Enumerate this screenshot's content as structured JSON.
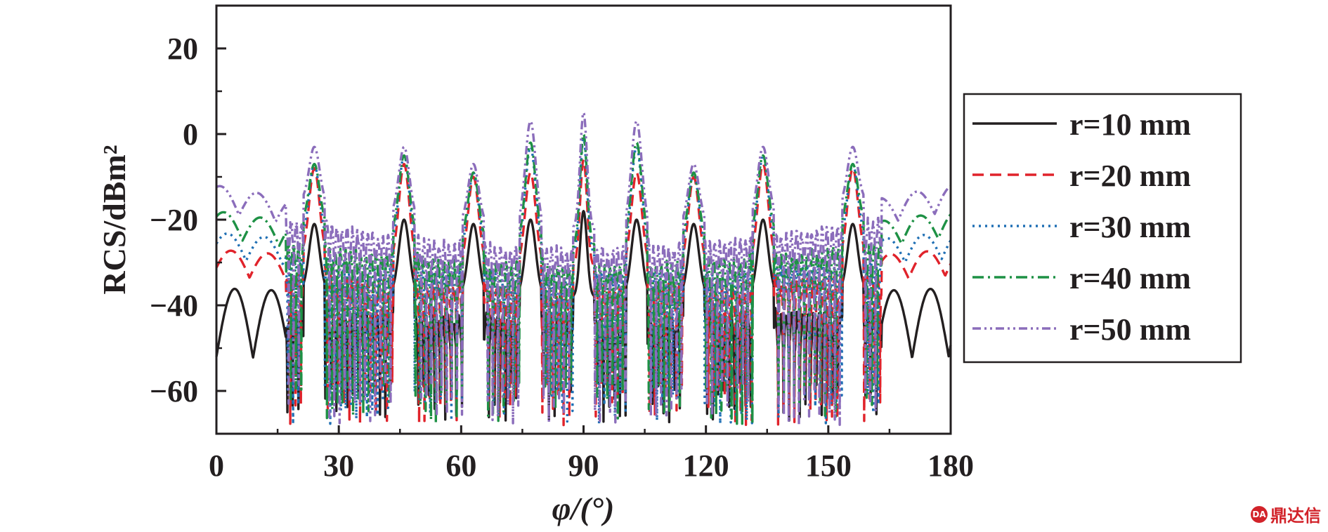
{
  "chart_data": {
    "type": "line",
    "xlabel": "φ/(°)",
    "ylabel": "RCS/dBm²",
    "xlim": [
      0,
      180
    ],
    "ylim": [
      -70,
      30
    ],
    "xticks": [
      0,
      30,
      60,
      90,
      120,
      150,
      180
    ],
    "yticks": [
      -60,
      -40,
      -20,
      0,
      20
    ],
    "grid": false,
    "legend_position": "right",
    "peaks_x": [
      24,
      46,
      63,
      77,
      90,
      103,
      117,
      134,
      156
    ],
    "series": [
      {
        "name": "r=10 mm",
        "color": "#231f20",
        "dash": "",
        "edge": -36,
        "mid": -38,
        "peaks_y": [
          -21,
          -20,
          -21,
          -20,
          -18,
          -20,
          -21,
          -20,
          -21
        ]
      },
      {
        "name": "r=20 mm",
        "color": "#e0232b",
        "dash": "16 9",
        "edge": -27,
        "mid": -31,
        "peaks_y": [
          -8,
          -7,
          -10,
          -9,
          -6,
          -9,
          -10,
          -7,
          -8
        ]
      },
      {
        "name": "r=30 mm",
        "color": "#1f6fb4",
        "dash": "3 6",
        "edge": -23,
        "mid": -28,
        "peaks_y": [
          -7,
          -5,
          -9,
          -3,
          -1,
          -3,
          -9,
          -5,
          -7
        ]
      },
      {
        "name": "r=40 mm",
        "color": "#1e9145",
        "dash": "16 6 3 6",
        "edge": -18,
        "mid": -26,
        "peaks_y": [
          -7,
          -5,
          -9,
          -2,
          0,
          -2,
          -9,
          -5,
          -7
        ]
      },
      {
        "name": "r=50 mm",
        "color": "#8b6dbb",
        "dash": "12 5 3 5 3 5",
        "edge": -12,
        "mid": -22,
        "peaks_y": [
          -3,
          -3,
          -7,
          3,
          5,
          3,
          -7,
          -3,
          -3
        ]
      }
    ]
  },
  "watermark": {
    "text": "鼎达信",
    "icon": "logo-icon"
  }
}
